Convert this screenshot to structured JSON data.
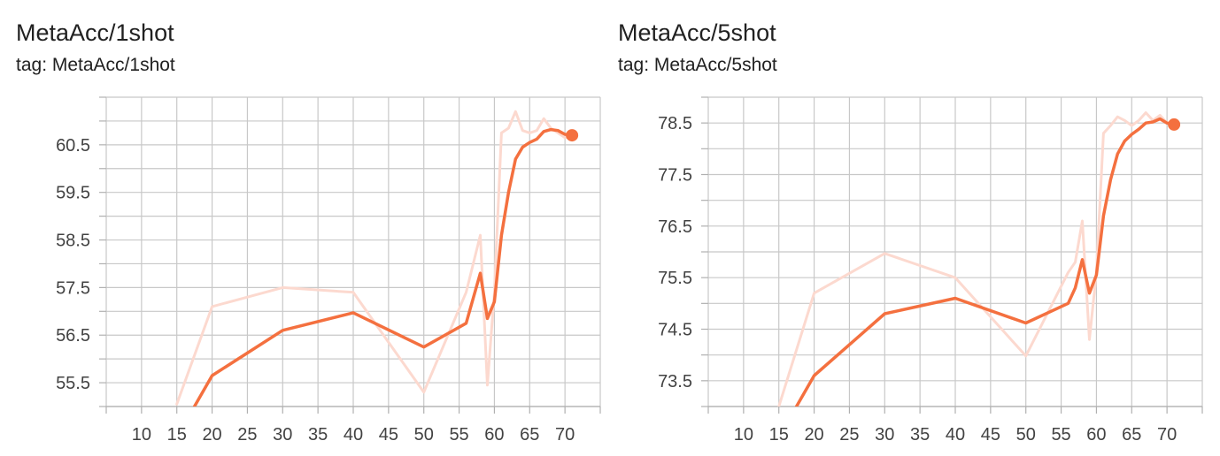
{
  "chart_data": [
    {
      "type": "line",
      "title": "MetaAcc/1shot",
      "subtitle": "tag: MetaAcc/1shot",
      "xlabel": "",
      "ylabel": "",
      "xlim": [
        5,
        75
      ],
      "ylim": [
        55.0,
        61.5
      ],
      "x_ticks": [
        10,
        15,
        20,
        25,
        30,
        35,
        40,
        45,
        50,
        55,
        60,
        65,
        70
      ],
      "y_ticks": [
        55.5,
        56.5,
        57.5,
        58.5,
        59.5,
        60.5
      ],
      "y_tick_labels": [
        "55.5",
        "56.5",
        "57.5",
        "58.5",
        "59.5",
        "60.5"
      ],
      "grid": true,
      "legend": "none",
      "series": [
        {
          "role": "raw",
          "color": "#fcd9cf",
          "x": [
            15,
            20,
            30,
            40,
            50,
            56,
            58,
            59,
            60,
            61,
            62,
            63,
            64,
            65,
            66,
            67,
            68,
            69,
            70,
            71
          ],
          "y": [
            55.05,
            57.1,
            57.5,
            57.4,
            55.3,
            57.4,
            58.6,
            55.45,
            57.4,
            60.75,
            60.85,
            61.2,
            60.8,
            60.75,
            60.8,
            61.05,
            60.85,
            60.75,
            60.65,
            60.7
          ]
        },
        {
          "role": "smoothed",
          "color": "#f4703f",
          "x": [
            17.5,
            20,
            30,
            40,
            50,
            56,
            58,
            59,
            60,
            61,
            62,
            63,
            64,
            65,
            66,
            67,
            68,
            69,
            70,
            71
          ],
          "y": [
            55.0,
            55.65,
            56.6,
            56.97,
            56.25,
            56.75,
            57.8,
            56.85,
            57.2,
            58.6,
            59.5,
            60.2,
            60.45,
            60.55,
            60.62,
            60.78,
            60.82,
            60.8,
            60.72,
            60.7
          ]
        }
      ]
    },
    {
      "type": "line",
      "title": "MetaAcc/5shot",
      "subtitle": "tag: MetaAcc/5shot",
      "xlabel": "",
      "ylabel": "",
      "xlim": [
        5,
        75
      ],
      "ylim": [
        73.0,
        79.0
      ],
      "x_ticks": [
        10,
        15,
        20,
        25,
        30,
        35,
        40,
        45,
        50,
        55,
        60,
        65,
        70
      ],
      "y_ticks": [
        73.5,
        74.5,
        75.5,
        76.5,
        77.5,
        78.5
      ],
      "y_tick_labels": [
        "73.5",
        "74.5",
        "75.5",
        "76.5",
        "77.5",
        "78.5"
      ],
      "grid": true,
      "legend": "none",
      "series": [
        {
          "role": "raw",
          "color": "#fcd9cf",
          "x": [
            15,
            20,
            30,
            40,
            50,
            56,
            57,
            58,
            59,
            60,
            61,
            62,
            63,
            64,
            65,
            66,
            67,
            68,
            69,
            70,
            71
          ],
          "y": [
            73.0,
            75.2,
            75.97,
            75.5,
            73.98,
            75.6,
            75.8,
            76.6,
            74.3,
            75.6,
            78.3,
            78.45,
            78.62,
            78.55,
            78.45,
            78.55,
            78.7,
            78.55,
            78.65,
            78.5,
            78.45
          ]
        },
        {
          "role": "smoothed",
          "color": "#f4703f",
          "x": [
            17.5,
            20,
            30,
            40,
            50,
            56,
            57,
            58,
            59,
            60,
            61,
            62,
            63,
            64,
            65,
            66,
            67,
            68,
            69,
            70,
            71
          ],
          "y": [
            73.0,
            73.6,
            74.8,
            75.1,
            74.62,
            75.0,
            75.3,
            75.85,
            75.2,
            75.55,
            76.7,
            77.4,
            77.9,
            78.15,
            78.28,
            78.38,
            78.5,
            78.52,
            78.58,
            78.5,
            78.47
          ]
        }
      ]
    }
  ]
}
